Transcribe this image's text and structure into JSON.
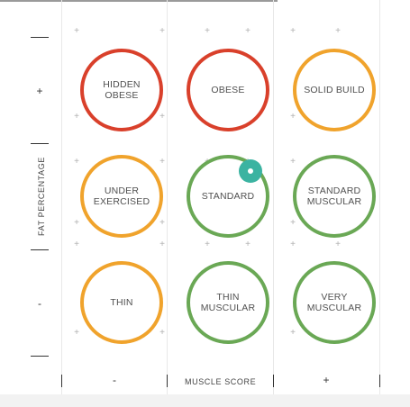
{
  "axes": {
    "y_label": "FAT PERCENTAGE",
    "x_label": "MUSCLE SCORE",
    "y_plus": "+",
    "y_minus": "-",
    "x_minus": "-",
    "x_plus": "+"
  },
  "grid": {
    "rows": [
      [
        {
          "label": "HIDDEN\nOBESE",
          "color": "#d9402b"
        },
        {
          "label": "OBESE",
          "color": "#d9402b"
        },
        {
          "label": "SOLID BUILD",
          "color": "#f0a32c"
        }
      ],
      [
        {
          "label": "UNDER\nEXERCISED",
          "color": "#f0a32c"
        },
        {
          "label": "STANDARD",
          "color": "#6aa855"
        },
        {
          "label": "STANDARD\nMUSCULAR",
          "color": "#6aa855"
        }
      ],
      [
        {
          "label": "THIN",
          "color": "#f0a32c"
        },
        {
          "label": "THIN\nMUSCULAR",
          "color": "#6aa855"
        },
        {
          "label": "VERY\nMUSCULAR",
          "color": "#6aa855"
        }
      ]
    ],
    "selected": {
      "row": 1,
      "col": 1,
      "marker_color": "#3bb3a1"
    }
  }
}
